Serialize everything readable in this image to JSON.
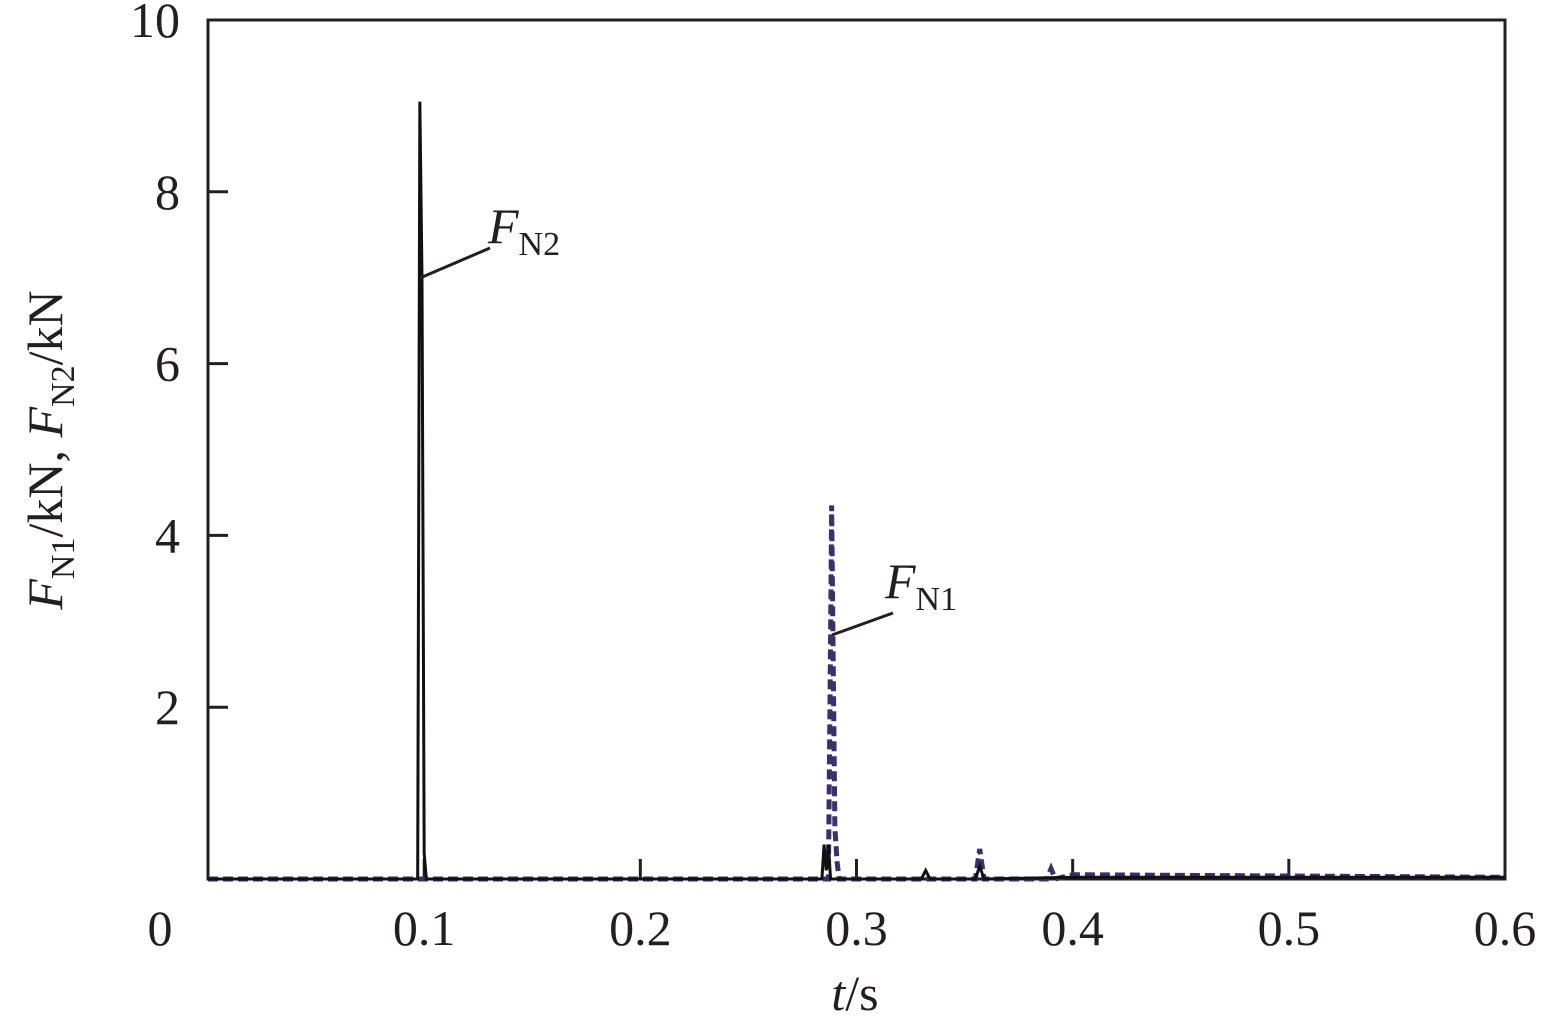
{
  "chart_data": {
    "type": "line",
    "xlabel": "t/s",
    "ylabel": "FN1/kN, FN2/kN",
    "xlim": [
      0,
      0.6
    ],
    "ylim": [
      0,
      10
    ],
    "xticks": [
      0,
      0.1,
      0.2,
      0.3,
      0.4,
      0.5,
      0.6
    ],
    "yticks": [
      2,
      4,
      6,
      8,
      10
    ],
    "series": [
      {
        "name": "FN1",
        "color": "#3b2f6e",
        "dash": true,
        "x": [
          0,
          0.287,
          0.288,
          0.2885,
          0.289,
          0.29,
          0.291,
          0.292,
          0.355,
          0.357,
          0.359,
          0.388,
          0.39,
          0.392,
          0.4,
          0.6
        ],
        "values": [
          0,
          0,
          2.8,
          4.35,
          3.1,
          0.6,
          0.2,
          0,
          0,
          0.35,
          0,
          0,
          0.12,
          0,
          0.05,
          0.02
        ]
      },
      {
        "name": "FN2",
        "color": "#111111",
        "dash": false,
        "x": [
          0,
          0.097,
          0.098,
          0.099,
          0.1,
          0.101,
          0.284,
          0.285,
          0.286,
          0.287,
          0.288,
          0.289,
          0.33,
          0.332,
          0.334,
          0.355,
          0.357,
          0.359,
          0.4,
          0.6
        ],
        "values": [
          0,
          0,
          9.05,
          7.0,
          0.3,
          0,
          0,
          0.4,
          0.1,
          0.4,
          0,
          0,
          0,
          0.1,
          0,
          0,
          0.15,
          0,
          0.02,
          0.02
        ]
      }
    ]
  }
}
